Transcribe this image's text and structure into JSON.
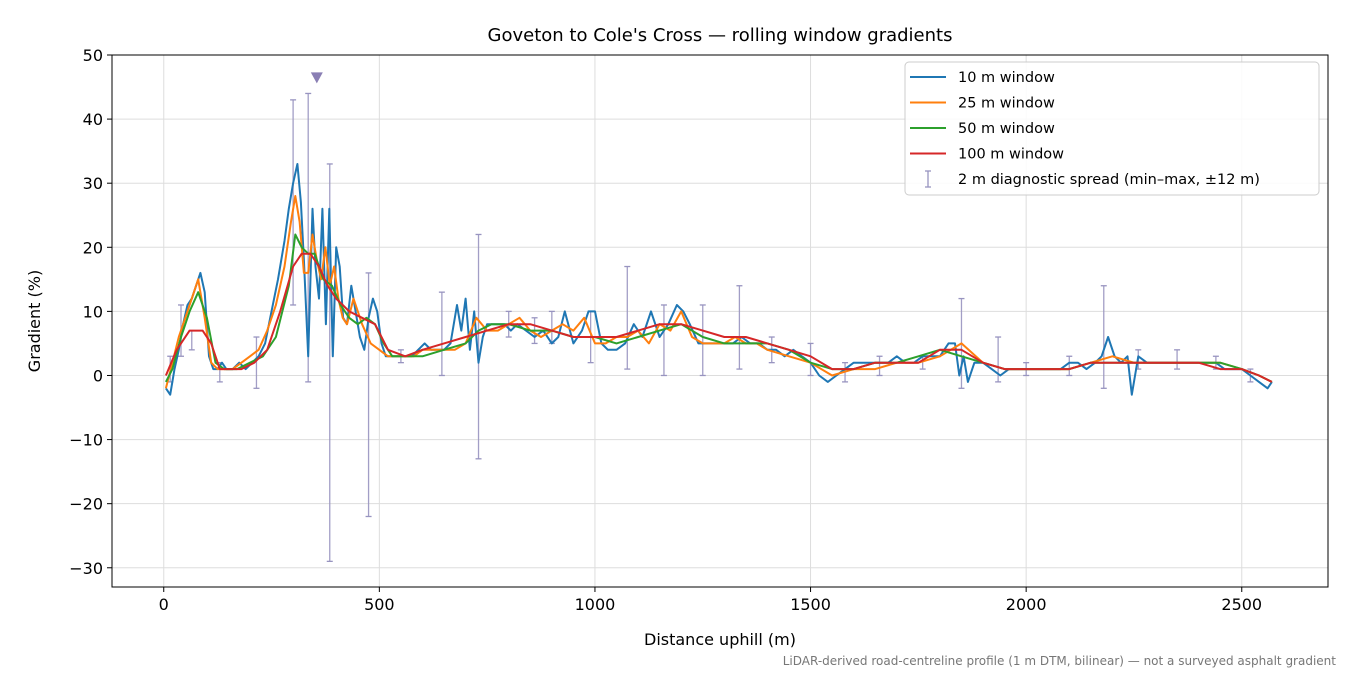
{
  "chart_data": {
    "type": "line",
    "title": "Goveton to Cole's Cross — rolling window gradients",
    "xlabel": "Distance uphill (m)",
    "ylabel": "Gradient (%)",
    "xlim": [
      -120,
      2700
    ],
    "ylim": [
      -33,
      50
    ],
    "xticks": [
      0,
      500,
      1000,
      1500,
      2000,
      2500
    ],
    "yticks": [
      -30,
      -20,
      -10,
      0,
      10,
      20,
      30,
      40,
      50
    ],
    "xtick_labels": [
      "0",
      "500",
      "1000",
      "1500",
      "2000",
      "2500"
    ],
    "ytick_labels": [
      "−30",
      "−20",
      "−10",
      "0",
      "10",
      "20",
      "30",
      "40",
      "50"
    ],
    "grid": true,
    "legend_position": "top-right",
    "footnote": "LiDAR-derived road-centreline profile (1 m DTM, bilinear) — not a surveyed asphalt gradient",
    "series": [
      {
        "name": "10 m window",
        "color": "#1f77b4",
        "x": [
          5,
          15,
          25,
          35,
          45,
          55,
          65,
          75,
          85,
          95,
          105,
          115,
          125,
          135,
          145,
          160,
          175,
          190,
          205,
          220,
          235,
          250,
          265,
          280,
          290,
          300,
          310,
          318,
          325,
          335,
          345,
          352,
          360,
          368,
          376,
          384,
          392,
          400,
          408,
          416,
          425,
          435,
          445,
          455,
          465,
          475,
          485,
          495,
          505,
          515,
          530,
          545,
          560,
          575,
          590,
          605,
          620,
          635,
          650,
          665,
          680,
          690,
          700,
          710,
          720,
          730,
          740,
          750,
          760,
          775,
          790,
          805,
          820,
          840,
          860,
          880,
          900,
          915,
          930,
          950,
          970,
          985,
          1000,
          1015,
          1030,
          1050,
          1070,
          1090,
          1110,
          1130,
          1150,
          1170,
          1190,
          1205,
          1220,
          1240,
          1260,
          1280,
          1300,
          1320,
          1340,
          1360,
          1380,
          1400,
          1420,
          1440,
          1460,
          1480,
          1500,
          1520,
          1540,
          1560,
          1580,
          1600,
          1620,
          1640,
          1660,
          1680,
          1700,
          1720,
          1740,
          1760,
          1780,
          1800,
          1820,
          1835,
          1845,
          1855,
          1865,
          1880,
          1900,
          1920,
          1940,
          1960,
          1980,
          2000,
          2020,
          2040,
          2060,
          2080,
          2100,
          2120,
          2140,
          2160,
          2175,
          2190,
          2205,
          2220,
          2235,
          2245,
          2260,
          2280,
          2300,
          2320,
          2340,
          2360,
          2380,
          2400,
          2420,
          2440,
          2460,
          2480,
          2500,
          2520,
          2540,
          2560,
          2570
        ],
        "y": [
          -2,
          -3,
          1,
          4,
          8,
          11,
          12,
          14,
          16,
          13,
          3,
          1,
          1,
          2,
          1,
          1,
          2,
          1,
          2,
          3,
          5,
          10,
          15,
          21,
          26,
          30,
          33,
          27,
          18,
          3,
          26,
          17,
          12,
          26,
          8,
          26,
          3,
          20,
          17,
          9,
          8,
          14,
          10,
          6,
          4,
          9,
          12,
          10,
          5,
          3,
          3,
          3,
          3,
          3,
          4,
          5,
          4,
          4,
          4,
          5,
          11,
          7,
          12,
          4,
          10,
          2,
          6,
          8,
          8,
          8,
          8,
          7,
          8,
          7,
          6,
          7,
          5,
          6,
          10,
          5,
          7,
          10,
          10,
          5,
          4,
          4,
          5,
          8,
          6,
          10,
          6,
          8,
          11,
          10,
          8,
          5,
          5,
          5,
          5,
          5,
          6,
          5,
          5,
          4,
          4,
          3,
          4,
          3,
          2,
          0,
          -1,
          0,
          1,
          2,
          2,
          2,
          2,
          2,
          3,
          2,
          2,
          3,
          3,
          3,
          5,
          5,
          0,
          3,
          -1,
          2,
          2,
          1,
          0,
          1,
          1,
          1,
          1,
          1,
          1,
          1,
          2,
          2,
          1,
          2,
          3,
          6,
          3,
          2,
          3,
          -3,
          3,
          2,
          2,
          2,
          2,
          2,
          2,
          2,
          2,
          2,
          1,
          1,
          1,
          0,
          -1,
          -2,
          -1
        ]
      },
      {
        "name": "25 m window",
        "color": "#ff7f0e",
        "x": [
          5,
          20,
          35,
          50,
          65,
          80,
          95,
          110,
          125,
          140,
          160,
          180,
          200,
          220,
          240,
          260,
          280,
          295,
          305,
          315,
          325,
          335,
          345,
          355,
          365,
          375,
          385,
          395,
          405,
          415,
          425,
          440,
          460,
          480,
          500,
          520,
          540,
          560,
          580,
          600,
          625,
          650,
          675,
          700,
          725,
          750,
          775,
          800,
          825,
          850,
          875,
          900,
          925,
          950,
          975,
          1000,
          1025,
          1050,
          1075,
          1100,
          1125,
          1150,
          1175,
          1200,
          1225,
          1250,
          1275,
          1300,
          1325,
          1350,
          1375,
          1400,
          1450,
          1500,
          1550,
          1600,
          1650,
          1700,
          1750,
          1800,
          1850,
          1900,
          1950,
          2000,
          2050,
          2100,
          2150,
          2200,
          2250,
          2300,
          2350,
          2400,
          2450,
          2500,
          2540,
          2570
        ],
        "y": [
          -2,
          2,
          6,
          9,
          12,
          15,
          9,
          2,
          1,
          1,
          1,
          2,
          3,
          4,
          7,
          11,
          17,
          24,
          28,
          24,
          16,
          16,
          22,
          18,
          15,
          20,
          14,
          17,
          12,
          9,
          8,
          12,
          8,
          5,
          4,
          3,
          3,
          3,
          3,
          4,
          4,
          4,
          4,
          5,
          9,
          7,
          7,
          8,
          9,
          7,
          6,
          7,
          8,
          7,
          9,
          5,
          5,
          6,
          6,
          7,
          5,
          8,
          7,
          10,
          6,
          5,
          5,
          5,
          6,
          5,
          5,
          4,
          3,
          2,
          0,
          1,
          1,
          2,
          2,
          3,
          5,
          2,
          1,
          1,
          1,
          1,
          2,
          3,
          2,
          2,
          2,
          2,
          2,
          1,
          0,
          -1
        ]
      },
      {
        "name": "50 m window",
        "color": "#2ca02c",
        "x": [
          5,
          20,
          40,
          60,
          80,
          100,
          120,
          140,
          170,
          200,
          230,
          260,
          290,
          305,
          320,
          335,
          350,
          370,
          390,
          410,
          430,
          450,
          470,
          490,
          510,
          530,
          560,
          600,
          650,
          700,
          730,
          760,
          800,
          850,
          900,
          950,
          1000,
          1050,
          1100,
          1150,
          1200,
          1250,
          1300,
          1350,
          1400,
          1450,
          1500,
          1550,
          1600,
          1650,
          1700,
          1750,
          1800,
          1850,
          1900,
          1950,
          2000,
          2050,
          2100,
          2150,
          2200,
          2250,
          2300,
          2350,
          2400,
          2450,
          2500,
          2540,
          2570
        ],
        "y": [
          -1,
          1,
          6,
          10,
          13,
          9,
          2,
          1,
          1,
          2,
          3,
          6,
          14,
          22,
          20,
          19,
          19,
          15,
          14,
          11,
          9,
          8,
          9,
          8,
          5,
          3,
          3,
          3,
          4,
          5,
          7,
          8,
          8,
          7,
          7,
          6,
          6,
          5,
          6,
          7,
          8,
          6,
          5,
          5,
          5,
          4,
          2,
          1,
          1,
          2,
          2,
          3,
          4,
          3,
          2,
          1,
          1,
          1,
          1,
          2,
          2,
          2,
          2,
          2,
          2,
          2,
          1,
          0,
          -1
        ]
      },
      {
        "name": "100 m window",
        "color": "#d62728",
        "x": [
          5,
          30,
          60,
          90,
          110,
          130,
          150,
          180,
          210,
          240,
          270,
          300,
          320,
          340,
          360,
          380,
          400,
          430,
          460,
          490,
          520,
          560,
          600,
          650,
          700,
          750,
          800,
          850,
          900,
          950,
          1000,
          1050,
          1100,
          1150,
          1200,
          1250,
          1300,
          1350,
          1400,
          1450,
          1500,
          1550,
          1600,
          1650,
          1700,
          1750,
          1800,
          1850,
          1900,
          1950,
          2000,
          2050,
          2100,
          2150,
          2200,
          2250,
          2300,
          2350,
          2400,
          2450,
          2500,
          2540,
          2570
        ],
        "y": [
          0,
          4,
          7,
          7,
          5,
          1,
          1,
          1,
          2,
          4,
          10,
          17,
          19,
          19,
          17,
          14,
          12,
          10,
          9,
          8,
          4,
          3,
          4,
          5,
          6,
          7,
          8,
          8,
          7,
          6,
          6,
          6,
          7,
          8,
          8,
          7,
          6,
          6,
          5,
          4,
          3,
          1,
          1,
          2,
          2,
          2,
          4,
          4,
          2,
          1,
          1,
          1,
          1,
          2,
          2,
          2,
          2,
          2,
          2,
          1,
          1,
          0,
          -1
        ]
      },
      {
        "name": "2 m diagnostic spread (min–max, ±12 m)",
        "color": "#9894c0",
        "type": "errorbar",
        "x": [
          15,
          40,
          65,
          130,
          215,
          300,
          335,
          385,
          475,
          550,
          645,
          730,
          800,
          860,
          900,
          990,
          1075,
          1160,
          1250,
          1335,
          1410,
          1500,
          1580,
          1660,
          1760,
          1850,
          1935,
          2000,
          2100,
          2180,
          2260,
          2350,
          2440,
          2520
        ],
        "low": [
          -1,
          3,
          4,
          -1,
          -2,
          11,
          -1,
          -29,
          -22,
          2,
          0,
          -13,
          6,
          5,
          5,
          2,
          1,
          0,
          0,
          1,
          2,
          0,
          -1,
          0,
          1,
          -2,
          -1,
          0,
          0,
          -2,
          1,
          1,
          1,
          -1
        ],
        "high": [
          3,
          11,
          7,
          2,
          6,
          43,
          44,
          33,
          16,
          4,
          13,
          22,
          10,
          9,
          10,
          10,
          17,
          11,
          11,
          14,
          6,
          5,
          2,
          3,
          3,
          12,
          6,
          2,
          3,
          14,
          4,
          4,
          3,
          1
        ]
      }
    ],
    "annotations": [
      {
        "type": "marker",
        "shape": "triangle-down",
        "x": 355,
        "y": 46.5,
        "color": "#8a7fb4"
      }
    ]
  }
}
